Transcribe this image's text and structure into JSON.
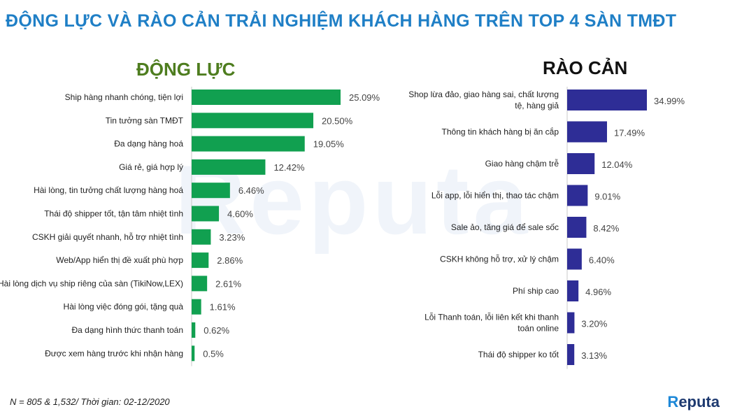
{
  "title": "ĐỘNG LỰC VÀ RÀO CẢN TRẢI NGHIỆM KHÁCH HÀNG TRÊN TOP 4 SÀN TMĐT",
  "footnote": "N = 805 & 1,532/ Thời gian: 02-12/2020",
  "logo": "Reputa",
  "watermark": "Reputa",
  "colors": {
    "title": "#1F7FC6",
    "left_bars": "#11A050",
    "right_bars": "#2E2D96"
  },
  "chart_data": [
    {
      "type": "bar",
      "orientation": "horizontal",
      "title": "ĐỘNG LỰC",
      "categories": [
        "Ship hàng nhanh chóng, tiện lợi",
        "Tin tưởng sàn TMĐT",
        "Đa dạng hàng hoá",
        "Giá rẻ, giá hợp lý",
        "Hài lòng, tin tưởng chất lượng hàng hoá",
        "Thái độ shipper tốt, tận tâm nhiệt tình",
        "CSKH giải quyết nhanh, hỗ trợ nhiệt tình",
        "Web/App hiển thị đề xuất phù hợp",
        "Hài lòng dịch vụ ship riêng của sàn (TikiNow,LEX)",
        "Hài lòng việc đóng gói, tặng quà",
        "Đa dạng hình thức thanh toán",
        "Được xem hàng trước khi nhận hàng"
      ],
      "values": [
        25.09,
        20.5,
        19.05,
        12.42,
        6.46,
        4.6,
        3.23,
        2.86,
        2.61,
        1.61,
        0.62,
        0.5
      ],
      "labels": [
        "25.09%",
        "20.50%",
        "19.05%",
        "12.42%",
        "6.46%",
        "4.60%",
        "3.23%",
        "2.86%",
        "2.61%",
        "1.61%",
        "0.62%",
        "0.5%"
      ],
      "color": "#11A050"
    },
    {
      "type": "bar",
      "orientation": "horizontal",
      "title": "RÀO CẢN",
      "categories": [
        [
          "Shop lừa đảo, giao hàng sai, chất lượng",
          "tệ, hàng giả"
        ],
        [
          "Thông tin khách hàng bị ăn cắp"
        ],
        [
          "Giao hàng chậm trễ"
        ],
        [
          "Lỗi app, lỗi hiển thị, thao tác chậm"
        ],
        [
          "Sale ảo, tăng giá để sale sốc"
        ],
        [
          "CSKH không hỗ trợ, xử lý chậm"
        ],
        [
          "Phí ship cao"
        ],
        [
          "Lỗi Thanh toán, lỗi liên kết khi thanh",
          "toán online"
        ],
        [
          "Thái độ shipper ko tốt"
        ]
      ],
      "values": [
        34.99,
        17.49,
        12.04,
        9.01,
        8.42,
        6.4,
        4.96,
        3.2,
        3.13
      ],
      "labels": [
        "34.99%",
        "17.49%",
        "12.04%",
        "9.01%",
        "8.42%",
        "6.40%",
        "4.96%",
        "3.20%",
        "3.13%"
      ],
      "color": "#2E2D96"
    }
  ]
}
